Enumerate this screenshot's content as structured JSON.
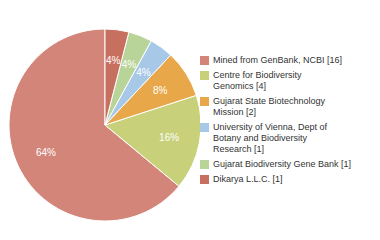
{
  "chart_data": {
    "type": "pie",
    "categories": [
      "Mined from GenBank, NCBI [16]",
      "Centre for Biodiversity\nGenomics [4]",
      "Gujarat State Biotechnology\nMission [2]",
      "University of Vienna, Dept of\nBotany and Biodiversity\nResearch [1]",
      "Gujarat Biodiversity Gene Bank [1]",
      "Dikarya L.L.C. [1]"
    ],
    "values": [
      64,
      16,
      8,
      4,
      4,
      4
    ],
    "value_labels": [
      "64%",
      "16%",
      "8%",
      "4%",
      "4%",
      "4%"
    ],
    "colors": [
      "#d4857a",
      "#c8d07a",
      "#e8a84a",
      "#a8c8e8",
      "#b8d498",
      "#c87060"
    ],
    "data_labels": true,
    "legend": "right"
  }
}
